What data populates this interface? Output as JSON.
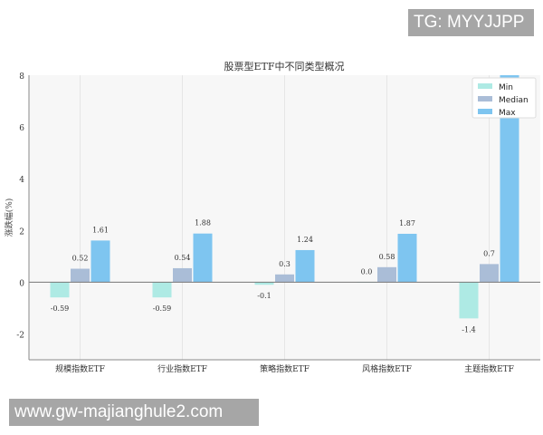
{
  "chart_data": {
    "type": "bar",
    "title": "股票型ETF中不同类型概况",
    "xlabel": "",
    "ylabel": "涨跌幅(%)",
    "ylim": [
      -3,
      8
    ],
    "yticks": [
      -2,
      0,
      2,
      4,
      6,
      8
    ],
    "categories": [
      "规模指数ETF",
      "行业指数ETF",
      "策略指数ETF",
      "风格指数ETF",
      "主题指数ETF"
    ],
    "series": [
      {
        "name": "Min",
        "values": [
          -0.59,
          -0.59,
          -0.1,
          0.0,
          -1.4
        ],
        "labels": [
          "-0.59",
          "-0.59",
          "-0.1",
          "0.0",
          "-1.4"
        ],
        "color": "#aeeae4"
      },
      {
        "name": "Median",
        "values": [
          0.52,
          0.54,
          0.3,
          0.58,
          0.7
        ],
        "labels": [
          "0.52",
          "0.54",
          "0.3",
          "0.58",
          "0.7"
        ],
        "color": "#aabdd7"
      },
      {
        "name": "Max",
        "values": [
          1.61,
          1.88,
          1.24,
          1.87,
          8.0
        ],
        "labels": [
          "1.61",
          "1.88",
          "1.24",
          "1.87",
          ""
        ],
        "color": "#7ec5f0"
      }
    ],
    "legend": "top-right",
    "grid": "vertical"
  },
  "watermarks": {
    "tg": "TG: MYYJJPP",
    "url": "www.gw-majianghule2.com"
  }
}
